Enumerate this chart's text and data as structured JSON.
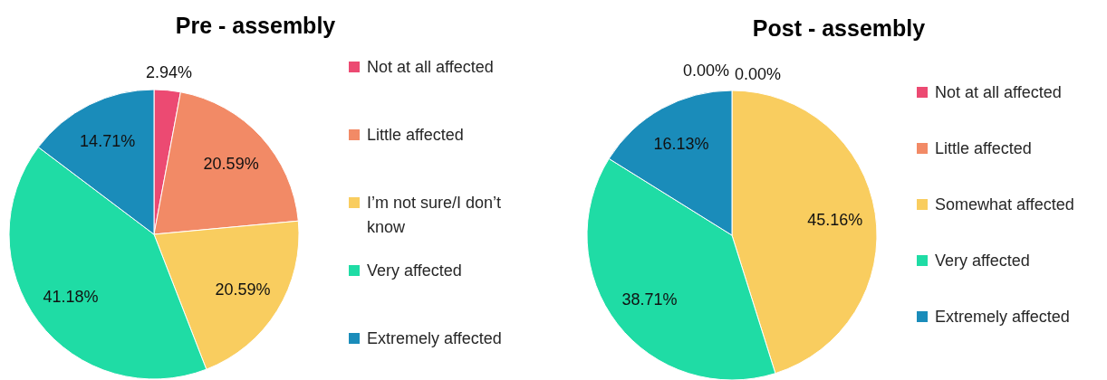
{
  "chart_data": [
    {
      "type": "pie",
      "title": "Pre - assembly",
      "categories": [
        "Not at all affected",
        "Little affected",
        "I’m not sure/I don’t know",
        "Very affected",
        "Extremely affected"
      ],
      "values": [
        2.94,
        20.59,
        20.59,
        41.18,
        14.71
      ],
      "value_labels": [
        "2.94%",
        "20.59%",
        "20.59%",
        "41.18%",
        "14.71%"
      ],
      "colors": [
        "#ec4a72",
        "#f28a66",
        "#f9cd5f",
        "#1fdca5",
        "#1a8cba"
      ],
      "legend": "right"
    },
    {
      "type": "pie",
      "title": "Post - assembly",
      "categories": [
        "Not at all affected",
        "Little affected",
        "Somewhat affected",
        "Very affected",
        "Extremely affected"
      ],
      "values": [
        0,
        0,
        45.16,
        38.71,
        16.13
      ],
      "value_labels": [
        "0.00%",
        "0.00%",
        "45.16%",
        "38.71%",
        "16.13%"
      ],
      "colors": [
        "#ec4a72",
        "#f28a66",
        "#f9cd5f",
        "#1fdca5",
        "#1a8cba"
      ],
      "legend": "right"
    }
  ]
}
